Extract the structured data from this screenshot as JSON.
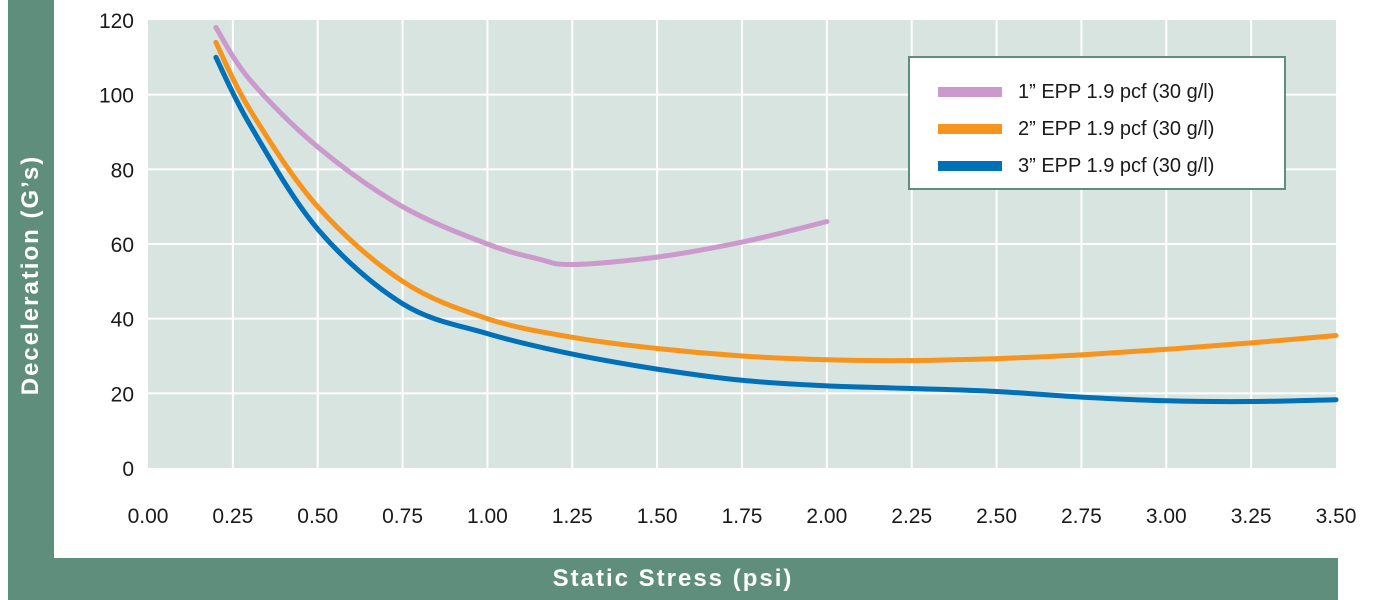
{
  "colors": {
    "plot_background": "#d7e4df",
    "band": "#5f8f7c",
    "gridline": "#ffffff",
    "tick_text": "#1a1a1a"
  },
  "chart_data": {
    "type": "line",
    "xlabel": "Static Stress (psi)",
    "ylabel": "Deceleration (G’s)",
    "xlim": [
      0.0,
      3.5
    ],
    "ylim": [
      0,
      120
    ],
    "x_ticks": [
      "0.00",
      "0.25",
      "0.50",
      "0.75",
      "1.00",
      "1.25",
      "1.50",
      "1.75",
      "2.00",
      "2.25",
      "2.50",
      "2.75",
      "3.00",
      "3.25",
      "3.50"
    ],
    "y_ticks": [
      "0",
      "20",
      "40",
      "60",
      "80",
      "100",
      "120"
    ],
    "grid": true,
    "legend_position": "top-right",
    "series": [
      {
        "name": "1” EPP 1.9 pcf (30 g/l)",
        "color": "#cc99cc",
        "points": [
          [
            0.2,
            118
          ],
          [
            0.3,
            104
          ],
          [
            0.5,
            86
          ],
          [
            0.75,
            70
          ],
          [
            1.0,
            60
          ],
          [
            1.15,
            56
          ],
          [
            1.25,
            54.5
          ],
          [
            1.5,
            56.5
          ],
          [
            1.75,
            60.5
          ],
          [
            2.0,
            66
          ]
        ]
      },
      {
        "name": "2” EPP 1.9 pcf (30 g/l)",
        "color": "#f7941d",
        "points": [
          [
            0.2,
            114
          ],
          [
            0.3,
            96
          ],
          [
            0.5,
            70
          ],
          [
            0.75,
            50
          ],
          [
            1.0,
            40
          ],
          [
            1.25,
            35
          ],
          [
            1.5,
            32
          ],
          [
            1.75,
            30
          ],
          [
            2.0,
            29
          ],
          [
            2.25,
            28.8
          ],
          [
            2.5,
            29.3
          ],
          [
            2.75,
            30.3
          ],
          [
            3.0,
            31.8
          ],
          [
            3.25,
            33.5
          ],
          [
            3.5,
            35.5
          ]
        ]
      },
      {
        "name": "3” EPP 1.9 pcf (30 g/l)",
        "color": "#0070b8",
        "points": [
          [
            0.2,
            110
          ],
          [
            0.3,
            92
          ],
          [
            0.5,
            64
          ],
          [
            0.75,
            44
          ],
          [
            1.0,
            36
          ],
          [
            1.25,
            30.5
          ],
          [
            1.5,
            26.5
          ],
          [
            1.75,
            23.5
          ],
          [
            2.0,
            22
          ],
          [
            2.25,
            21.3
          ],
          [
            2.5,
            20.5
          ],
          [
            2.75,
            19
          ],
          [
            3.0,
            18
          ],
          [
            3.25,
            17.8
          ],
          [
            3.5,
            18.3
          ]
        ]
      }
    ]
  }
}
